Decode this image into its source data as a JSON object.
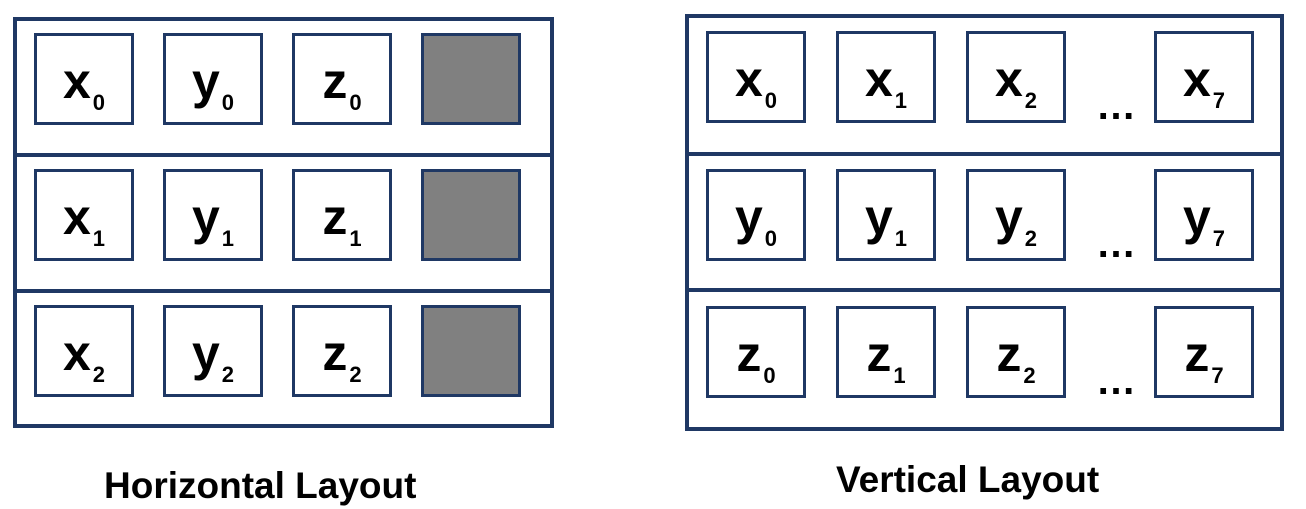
{
  "horizontal": {
    "caption": "Horizontal Layout",
    "padding_color": "#808080",
    "rows": [
      [
        {
          "base": "x",
          "sub": "0"
        },
        {
          "base": "y",
          "sub": "0"
        },
        {
          "base": "z",
          "sub": "0"
        }
      ],
      [
        {
          "base": "x",
          "sub": "1"
        },
        {
          "base": "y",
          "sub": "1"
        },
        {
          "base": "z",
          "sub": "1"
        }
      ],
      [
        {
          "base": "x",
          "sub": "2"
        },
        {
          "base": "y",
          "sub": "2"
        },
        {
          "base": "z",
          "sub": "2"
        }
      ]
    ]
  },
  "vertical": {
    "caption": "Vertical Layout",
    "ellipsis": "…",
    "rows": [
      [
        {
          "base": "x",
          "sub": "0"
        },
        {
          "base": "x",
          "sub": "1"
        },
        {
          "base": "x",
          "sub": "2"
        },
        {
          "base": "x",
          "sub": "7"
        }
      ],
      [
        {
          "base": "y",
          "sub": "0"
        },
        {
          "base": "y",
          "sub": "1"
        },
        {
          "base": "y",
          "sub": "2"
        },
        {
          "base": "y",
          "sub": "7"
        }
      ],
      [
        {
          "base": "z",
          "sub": "0"
        },
        {
          "base": "z",
          "sub": "1"
        },
        {
          "base": "z",
          "sub": "2"
        },
        {
          "base": "z",
          "sub": "7"
        }
      ]
    ]
  },
  "colors": {
    "border": "#1f3864",
    "padding_fill": "#808080"
  }
}
